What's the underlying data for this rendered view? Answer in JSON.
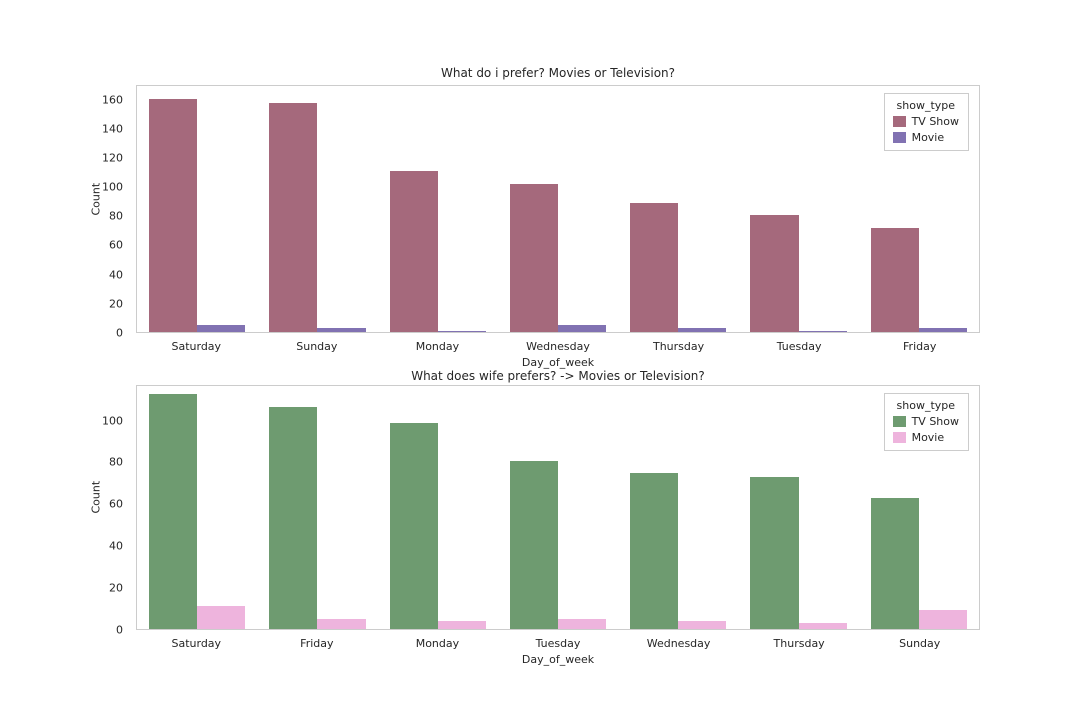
{
  "chart_data": [
    {
      "type": "bar",
      "title": "What do i prefer? Movies or Television?",
      "xlabel": "Day_of_week",
      "ylabel": "Count",
      "legend_title": "show_type",
      "legend_position": "upper-right",
      "grid": false,
      "ylim": [
        0,
        170
      ],
      "yticks": [
        0,
        20,
        40,
        60,
        80,
        100,
        120,
        140,
        160
      ],
      "categories": [
        "Saturday",
        "Sunday",
        "Monday",
        "Wednesday",
        "Thursday",
        "Tuesday",
        "Friday"
      ],
      "series": [
        {
          "name": "TV Show",
          "color": "#a5697c",
          "values": [
            161,
            158,
            111,
            102,
            89,
            81,
            72
          ]
        },
        {
          "name": "Movie",
          "color": "#8172b2",
          "values": [
            5,
            3,
            1,
            5,
            3,
            1,
            3
          ]
        }
      ]
    },
    {
      "type": "bar",
      "title": "What does wife prefers?  -> Movies or Television?",
      "xlabel": "Day_of_week",
      "ylabel": "Count",
      "legend_title": "show_type",
      "legend_position": "upper-right",
      "grid": false,
      "ylim": [
        0,
        117
      ],
      "yticks": [
        0,
        20,
        40,
        60,
        80,
        100
      ],
      "categories": [
        "Saturday",
        "Friday",
        "Monday",
        "Tuesday",
        "Wednesday",
        "Thursday",
        "Sunday"
      ],
      "series": [
        {
          "name": "TV Show",
          "color": "#6e9b70",
          "values": [
            113,
            107,
            99,
            81,
            75,
            73,
            63
          ]
        },
        {
          "name": "Movie",
          "color": "#eeb4dd",
          "values": [
            11,
            5,
            4,
            5,
            4,
            3,
            9
          ]
        }
      ]
    }
  ]
}
